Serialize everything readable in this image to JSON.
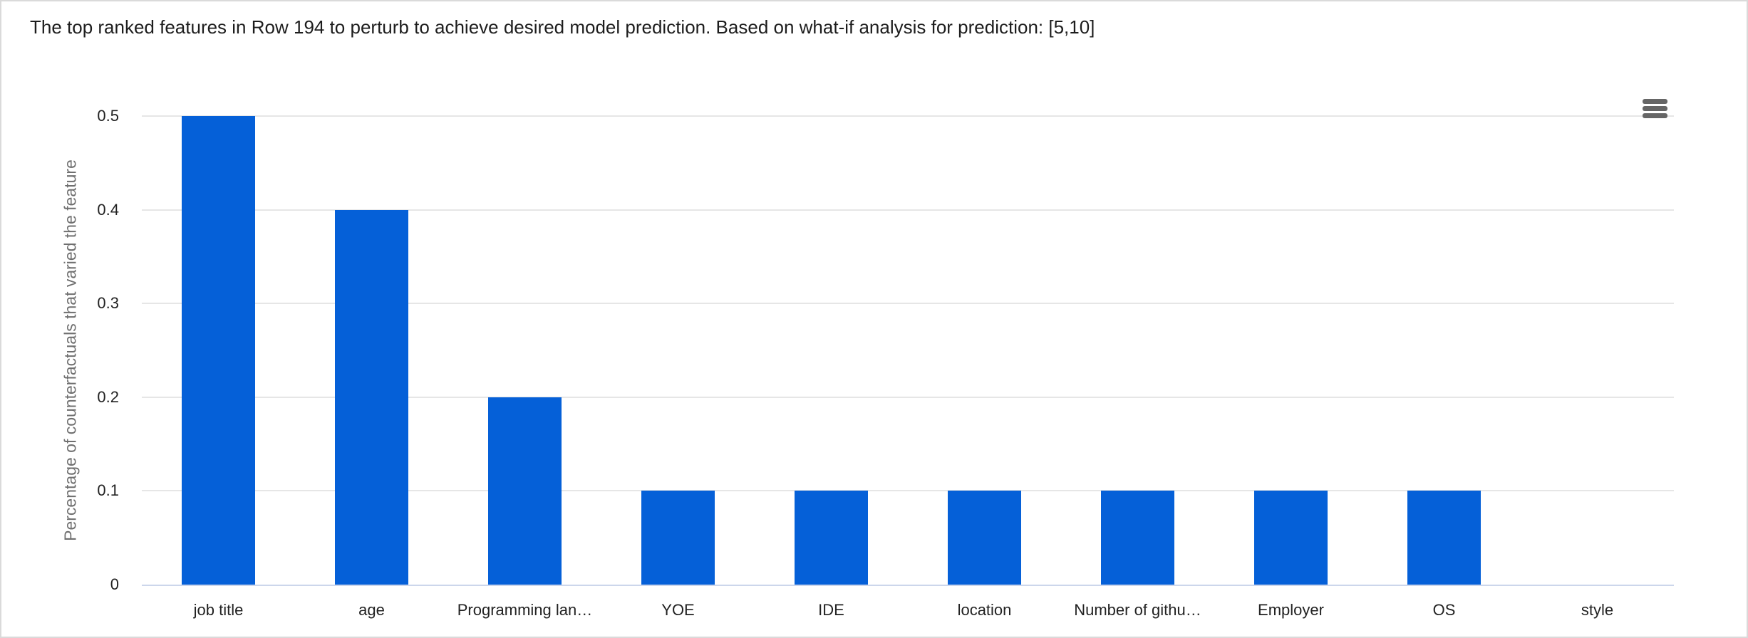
{
  "window": {
    "background": "#ffffff",
    "border_color": "#dadada"
  },
  "toolbar": {
    "context_menu": {
      "icon": "hamburger-icon",
      "color": "#666666",
      "tooltip": "Chart context menu"
    }
  },
  "chart_data": {
    "type": "bar",
    "title": "The top ranked features in Row 194 to perturb to achieve desired model prediction. Based on what-if analysis for prediction: [5,10]",
    "categories": [
      "job title",
      "age",
      "Programming lan…",
      "YOE",
      "IDE",
      "location",
      "Number of githu…",
      "Employer",
      "OS",
      "style"
    ],
    "values": [
      0.5,
      0.4,
      0.2,
      0.1,
      0.1,
      0.1,
      0.1,
      0.1,
      0.1,
      0
    ],
    "xlabel": "",
    "ylabel": "Percentage of counterfactuals that varied the feature",
    "ylim": [
      0,
      0.5
    ],
    "y_ticks": [
      0,
      0.1,
      0.2,
      0.3,
      0.4,
      0.5
    ],
    "y_tick_labels": [
      "0",
      "0.1",
      "0.2",
      "0.3",
      "0.4",
      "0.5"
    ],
    "grid": true,
    "legend_position": "none",
    "bar_color": "#0560d8",
    "gridline_color": "#e6e6e6",
    "axis_line_color": "#ccd6eb",
    "tick_label_color": "#222222",
    "axis_title_color": "#6f6f6f",
    "title_color": "#1d1d1d"
  }
}
